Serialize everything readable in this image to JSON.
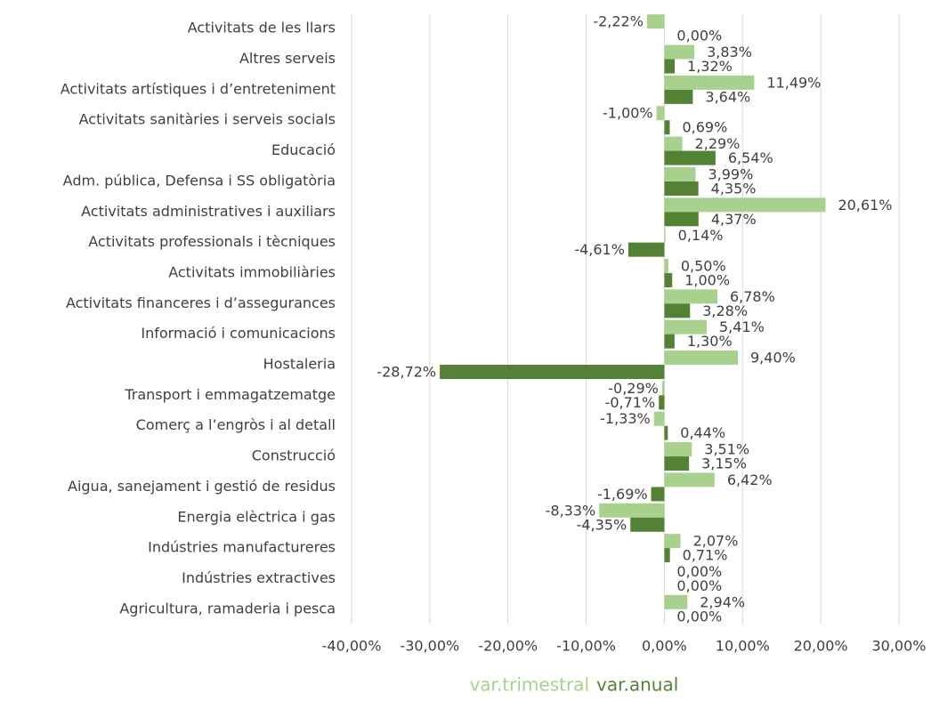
{
  "chart_data": {
    "type": "barh",
    "categories": [
      "Activitats de les llars",
      "Altres serveis",
      "Activitats artístiques i d’entreteniment",
      "Activitats sanitàries i serveis socials",
      "Educació",
      "Adm. pública, Defensa i SS obligatòria",
      "Activitats administratives i auxiliars",
      "Activitats professionals i tècniques",
      "Activitats immobiliàries",
      "Activitats financeres i d’assegurances",
      "Informació i comunicacions",
      "Hostaleria",
      "Transport i emmagatzematge",
      "Comerç a l’engròs i al detall",
      "Construcció",
      "Aigua, sanejament i gestió de residus",
      "Energia elèctrica i gas",
      "Indústries manufactureres",
      "Indústries extractives",
      "Agricultura, ramaderia i pesca"
    ],
    "series": [
      {
        "name": "var.trimestral",
        "color": "#a9d18e",
        "values": [
          -2.22,
          3.83,
          11.49,
          -1.0,
          2.29,
          3.99,
          20.61,
          0.14,
          0.5,
          6.78,
          5.41,
          9.4,
          -0.29,
          -1.33,
          3.51,
          6.42,
          -8.33,
          2.07,
          0.0,
          2.94
        ],
        "value_labels": [
          "-2,22%",
          "3,83%",
          "11,49%",
          "-1,00%",
          "2,29%",
          "3,99%",
          "20,61%",
          "0,14%",
          "0,50%",
          "6,78%",
          "5,41%",
          "9,40%",
          "-0,29%",
          "-1,33%",
          "3,51%",
          "6,42%",
          "-8,33%",
          "2,07%",
          "0,00%",
          "2,94%"
        ]
      },
      {
        "name": "var.anual",
        "color": "#548235",
        "values": [
          0.0,
          1.32,
          3.64,
          0.69,
          6.54,
          4.35,
          4.37,
          -4.61,
          1.0,
          3.28,
          1.3,
          -28.72,
          -0.71,
          0.44,
          3.15,
          -1.69,
          -4.35,
          0.71,
          0.0,
          0.0
        ],
        "value_labels": [
          "0,00%",
          "1,32%",
          "3,64%",
          "0,69%",
          "6,54%",
          "4,35%",
          "4,37%",
          "-4,61%",
          "1,00%",
          "3,28%",
          "1,30%",
          "-28,72%",
          "-0,71%",
          "0,44%",
          "3,15%",
          "-1,69%",
          "-4,35%",
          "0,71%",
          "0,00%",
          "0,00%"
        ]
      }
    ],
    "xlim": [
      -40,
      30
    ],
    "xticks": [
      {
        "value": -40,
        "label": "-40,00%"
      },
      {
        "value": -30,
        "label": "-30,00%"
      },
      {
        "value": -20,
        "label": "-20,00%"
      },
      {
        "value": -10,
        "label": "-10,00%"
      },
      {
        "value": 0,
        "label": "0,00%"
      },
      {
        "value": 10,
        "label": "10,00%"
      },
      {
        "value": 20,
        "label": "20,00%"
      },
      {
        "value": 30,
        "label": "30,00%"
      }
    ],
    "grid": true,
    "legend": "bottom"
  }
}
